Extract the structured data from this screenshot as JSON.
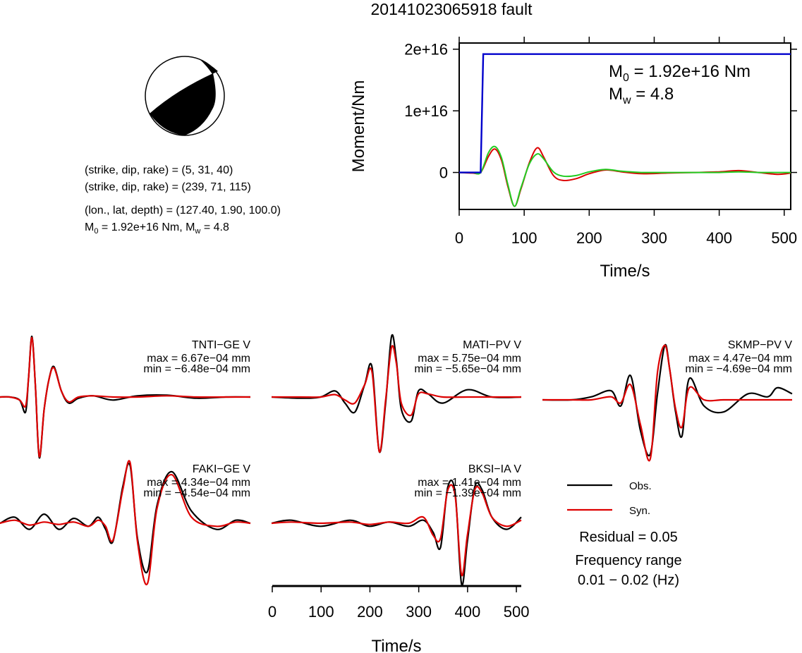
{
  "title": "20141023065918 fault",
  "mechanism": {
    "nodal_plane_1": "(strike, dip, rake) = (5, 31, 40)",
    "nodal_plane_2": "(strike, dip, rake) = (239, 71, 115)",
    "location": "(lon., lat, depth) = (127.40, 1.90, 100.0)",
    "moment_prefix": "M",
    "moment_sub": "0",
    "moment_rest": " = 1.92e+16 Nm, M",
    "mw_sub": "w",
    "mw_rest": " = 4.8"
  },
  "moment_panel": {
    "ylabel": "Moment/Nm",
    "xlabel": "Time/s",
    "yticks": [
      "2e+16",
      "1e+16",
      "0"
    ],
    "xticks": [
      "0",
      "100",
      "200",
      "300",
      "400",
      "500"
    ],
    "m0_prefix": "M",
    "m0_sub": "0",
    "m0_rest": " = 1.92e+16 Nm",
    "mw_prefix": "M",
    "mw_sub": "w",
    "mw_rest": " = 4.8"
  },
  "waveforms": {
    "xlabel": "Time/s",
    "xticks": [
      "0",
      "100",
      "200",
      "300",
      "400",
      "500"
    ]
  },
  "stations": [
    {
      "name": "TNTI−GE V",
      "max": "max = 6.67e−04 mm",
      "min": "min = −6.48e−04 mm"
    },
    {
      "name": "MATI−PV V",
      "max": "max = 5.75e−04 mm",
      "min": "min = −5.65e−04 mm"
    },
    {
      "name": "SKMP−PV V",
      "max": "max = 4.47e−04 mm",
      "min": "min = −4.69e−04 mm"
    },
    {
      "name": "FAKI−GE V",
      "max": "max = 4.34e−04 mm",
      "min": "min = −4.54e−04 mm"
    },
    {
      "name": "BKSI−IA V",
      "max": "max = 1.41e−04 mm",
      "min": "min = −1.39e−04 mm"
    }
  ],
  "legend": {
    "obs": "Obs.",
    "syn": "Syn.",
    "residual": "Residual = 0.05",
    "freq_label": "Frequency range",
    "freq_value": "0.01 − 0.02 (Hz)"
  },
  "colors": {
    "observed": "#000000",
    "synthetic": "#dd0000",
    "cumulative_moment": "#0000cc",
    "moment_rate_a": "#dd0000",
    "moment_rate_b": "#22cc22"
  },
  "chart_data": [
    {
      "type": "line",
      "title": "",
      "xlabel": "Time/s",
      "ylabel": "Moment/Nm",
      "xlim": [
        0,
        510
      ],
      "ylim": [
        -6000000000000000.0,
        2.1e+16
      ],
      "grid": false,
      "series": [
        {
          "name": "",
          "color": "#0000cc",
          "x": [
            0,
            33,
            37,
            510
          ],
          "values": [
            0,
            0,
            1.92e+16,
            1.92e+16
          ]
        },
        {
          "name": "",
          "color": "#dd0000",
          "x": [
            0,
            20,
            33,
            45,
            55,
            65,
            75,
            85,
            95,
            108,
            120,
            130,
            145,
            160,
            180,
            200,
            225,
            250,
            280,
            320,
            360,
            400,
            430,
            460,
            490,
            510
          ],
          "values": [
            0,
            -100000000000000.0,
            0,
            2600000000000000.0,
            3800000000000000.0,
            2000000000000000.0,
            -2300000000000000.0,
            -5500000000000000.0,
            -2700000000000000.0,
            1600000000000000.0,
            4000000000000000.0,
            2500000000000000.0,
            -500000000000000.0,
            -1300000000000000.0,
            -1000000000000000.0,
            -200000000000000.0,
            400000000000000.0,
            100000000000000.0,
            -200000000000000.0,
            -100000000000000.0,
            0,
            100000000000000.0,
            300000000000000.0,
            0,
            -300000000000000.0,
            -100000000000000.0
          ]
        },
        {
          "name": "",
          "color": "#22cc22",
          "x": [
            0,
            20,
            33,
            45,
            55,
            65,
            75,
            85,
            95,
            108,
            120,
            130,
            145,
            160,
            180,
            200,
            225,
            250,
            280,
            320,
            360,
            400,
            430,
            460,
            490,
            510
          ],
          "values": [
            0,
            0,
            0,
            3200000000000000.0,
            4200000000000000.0,
            2400000000000000.0,
            -2000000000000000.0,
            -5500000000000000.0,
            -2500000000000000.0,
            1400000000000000.0,
            3000000000000000.0,
            2200000000000000.0,
            100000000000000.0,
            -600000000000000.0,
            -500000000000000.0,
            100000000000000.0,
            500000000000000.0,
            200000000000000.0,
            0,
            0,
            0,
            0,
            100000000000000.0,
            0,
            0,
            0
          ]
        }
      ]
    },
    {
      "type": "line",
      "title": "TNTI−GE V",
      "x": [
        0,
        20,
        40,
        52,
        58,
        65,
        72,
        80,
        90,
        100,
        110,
        125,
        140,
        160,
        190,
        230,
        280,
        340,
        400,
        460,
        510
      ],
      "series": [
        {
          "name": "Obs.",
          "values": [
            0,
            0,
            -0.05,
            -0.25,
            0.3,
            1.0,
            0.2,
            -1.0,
            -0.2,
            0.3,
            0.5,
            0.1,
            -0.1,
            -0.02,
            0.02,
            -0.05,
            0.02,
            0.03,
            -0.02,
            0,
            0
          ]
        },
        {
          "name": "Syn.",
          "values": [
            0,
            0,
            -0.05,
            -0.15,
            0.3,
            0.98,
            0.2,
            -0.98,
            -0.2,
            0.3,
            0.48,
            0.1,
            -0.08,
            0,
            0.02,
            0,
            0,
            0.02,
            0,
            0,
            0
          ]
        }
      ]
    },
    {
      "type": "line",
      "title": "MATI−PV V",
      "x": [
        0,
        60,
        100,
        130,
        150,
        170,
        190,
        205,
        220,
        233,
        245,
        255,
        265,
        285,
        300,
        320,
        350,
        400,
        450,
        510
      ],
      "series": [
        {
          "name": "Obs.",
          "values": [
            0,
            -0.02,
            0,
            0.1,
            -0.1,
            -0.25,
            0.2,
            0.5,
            -0.9,
            -0.1,
            1.0,
            0.6,
            -0.2,
            -0.4,
            0.1,
            0.05,
            -0.1,
            0.12,
            0,
            0
          ]
        },
        {
          "name": "Syn.",
          "values": [
            0,
            0,
            0,
            0.04,
            -0.05,
            -0.1,
            0.2,
            0.42,
            -0.9,
            -0.05,
            0.82,
            0.55,
            -0.1,
            -0.3,
            0.05,
            0.05,
            0,
            0,
            0,
            0
          ]
        }
      ]
    },
    {
      "type": "line",
      "title": "SKMP−PV V",
      "x": [
        0,
        60,
        100,
        140,
        160,
        180,
        200,
        220,
        235,
        250,
        260,
        272,
        285,
        300,
        330,
        370,
        420,
        460,
        480,
        510
      ],
      "series": [
        {
          "name": "Obs.",
          "values": [
            0,
            0,
            0.05,
            0.15,
            -0.1,
            0.4,
            -0.5,
            -0.9,
            0.1,
            0.9,
            0.5,
            -0.2,
            -0.6,
            0.35,
            -0.1,
            -0.2,
            0.1,
            0.05,
            0.2,
            0.1
          ]
        },
        {
          "name": "Syn.",
          "values": [
            0,
            0,
            0,
            0.05,
            -0.05,
            0.25,
            -0.4,
            -0.98,
            0.45,
            0.9,
            0.5,
            -0.15,
            -0.45,
            0.2,
            0,
            0,
            0,
            0,
            0,
            0
          ]
        }
      ]
    },
    {
      "type": "line",
      "title": "FAKI−GE V",
      "x": [
        0,
        30,
        60,
        90,
        120,
        150,
        180,
        200,
        215,
        230,
        250,
        265,
        280,
        300,
        320,
        350,
        390,
        440,
        480,
        510
      ],
      "series": [
        {
          "name": "Obs.",
          "values": [
            0,
            0.1,
            -0.1,
            0.15,
            -0.1,
            0.08,
            -0.05,
            0.1,
            -0.1,
            -0.3,
            0.6,
            0.95,
            -0.25,
            -0.8,
            0.3,
            0.85,
            0.2,
            -0.1,
            0.05,
            0
          ]
        },
        {
          "name": "Syn.",
          "values": [
            0,
            0.05,
            -0.03,
            0.02,
            -0.02,
            0.02,
            -0.05,
            0.05,
            -0.05,
            -0.28,
            0.55,
            1.0,
            -0.3,
            -1.0,
            0.25,
            0.8,
            0.1,
            -0.05,
            0.02,
            0
          ]
        }
      ]
    },
    {
      "type": "line",
      "title": "BKSI−IA V",
      "x": [
        0,
        40,
        100,
        160,
        200,
        240,
        280,
        310,
        330,
        345,
        360,
        375,
        388,
        400,
        415,
        430,
        450,
        480,
        510
      ],
      "series": [
        {
          "name": "Obs.",
          "values": [
            0,
            0.05,
            -0.05,
            0.05,
            -0.05,
            0.02,
            -0.05,
            0.05,
            -0.15,
            -0.4,
            0.6,
            0.5,
            -1.0,
            -0.3,
            0.6,
            0.55,
            0.1,
            -0.1,
            0.1
          ]
        },
        {
          "name": "Syn.",
          "values": [
            0,
            0.02,
            0,
            0.02,
            -0.02,
            0.02,
            0,
            0.1,
            -0.2,
            -0.25,
            0.55,
            0.45,
            -0.85,
            -0.2,
            0.55,
            0.5,
            0.1,
            -0.05,
            0.05
          ]
        }
      ]
    }
  ]
}
